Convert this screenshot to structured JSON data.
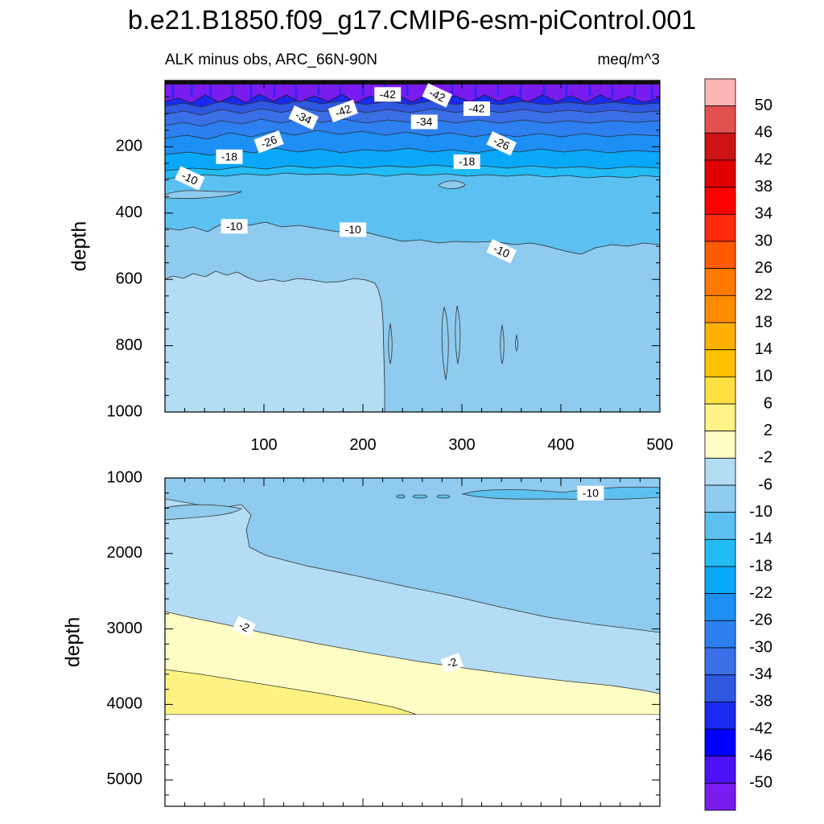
{
  "title": "b.e21.B1850.f09_g17.CMIP6-esm-piControl.001",
  "subtitle_left": "ALK minus obs, ARC_66N-90N",
  "subtitle_right": "meq/m^3",
  "chart_data": [
    {
      "type": "contour",
      "panel": "upper",
      "ylabel": "depth",
      "y_range": [
        0,
        1000
      ],
      "y_ticks": [
        "200",
        "400",
        "600",
        "800",
        "1000"
      ],
      "x_range": [
        0,
        500
      ],
      "x_ticks": [
        "100",
        "200",
        "300",
        "400",
        "500"
      ],
      "bands": [
        {
          "name": "-50 to -42 band",
          "top_depth": 0,
          "bottom_depth": 60,
          "color": "#7a1cf0"
        },
        {
          "name": "-42 to -38 band",
          "top_depth": 60,
          "bottom_depth": 80,
          "color": "#1a2af0"
        },
        {
          "name": "-38 to -34 band",
          "top_depth": 80,
          "bottom_depth": 100,
          "color": "#2f58e0"
        },
        {
          "name": "-34 to -30 band",
          "top_depth": 100,
          "bottom_depth": 130,
          "color": "#3a6fe8"
        },
        {
          "name": "-30 to -26 band",
          "top_depth": 130,
          "bottom_depth": 160,
          "color": "#2c80f0"
        },
        {
          "name": "-26 to -22 band",
          "top_depth": 160,
          "bottom_depth": 195,
          "color": "#1e8ff5"
        },
        {
          "name": "-22 to -18 band",
          "top_depth": 195,
          "bottom_depth": 220,
          "color": "#0aa8f8"
        },
        {
          "name": "-18 to -14 band",
          "top_depth": 220,
          "bottom_depth": 255,
          "color": "#22bcf5"
        },
        {
          "name": "-14 to -10 band",
          "top_depth": 255,
          "bottom_depth": 470,
          "color": "#5cc1f0"
        },
        {
          "name": "-10 to -6 band",
          "top_depth": 470,
          "bottom_depth": 600,
          "color": "#8ecbee"
        },
        {
          "name": "-6 to -2 band",
          "top_depth": 600,
          "bottom_depth": 1000,
          "color": "#b4dcf4"
        }
      ],
      "labels": [
        {
          "text": "-42",
          "x": 225,
          "y": 42
        },
        {
          "text": "-42",
          "x": 275,
          "y": 45
        },
        {
          "text": "-42",
          "x": 180,
          "y": 92
        },
        {
          "text": "-42",
          "x": 315,
          "y": 85
        },
        {
          "text": "-34",
          "x": 140,
          "y": 112
        },
        {
          "text": "-34",
          "x": 262,
          "y": 125
        },
        {
          "text": "-26",
          "x": 105,
          "y": 185
        },
        {
          "text": "-26",
          "x": 340,
          "y": 190
        },
        {
          "text": "-18",
          "x": 65,
          "y": 230
        },
        {
          "text": "-18",
          "x": 305,
          "y": 245
        },
        {
          "text": "-10",
          "x": 25,
          "y": 295
        },
        {
          "text": "-10",
          "x": 70,
          "y": 440
        },
        {
          "text": "-10",
          "x": 190,
          "y": 450
        },
        {
          "text": "-10",
          "x": 340,
          "y": 515
        }
      ]
    },
    {
      "type": "contour",
      "panel": "lower",
      "ylabel": "depth",
      "y_range": [
        1000,
        5350
      ],
      "y_ticks": [
        "1000",
        "2000",
        "3000",
        "4000",
        "5000"
      ],
      "x_range": [
        0,
        500
      ],
      "bands": [
        {
          "name": "-14 to -10 band",
          "color": "#5cc1f0"
        },
        {
          "name": "-10 to -6 band",
          "color": "#8ecbee"
        },
        {
          "name": "-6 to -2 band",
          "color": "#b4dcf4"
        },
        {
          "name": "-2 to 2 band",
          "color": "#fefec4"
        },
        {
          "name": "2 to 6 band",
          "color": "#fef382"
        }
      ],
      "bottom_depth": 4120,
      "labels": [
        {
          "text": "-10",
          "x": 430,
          "y": 1200
        },
        {
          "text": "-2",
          "x": 80,
          "y": 2970
        },
        {
          "text": "-2",
          "x": 290,
          "y": 3450
        }
      ]
    }
  ],
  "colorbar": {
    "labels": [
      "50",
      "46",
      "42",
      "38",
      "34",
      "30",
      "26",
      "22",
      "18",
      "14",
      "10",
      "6",
      "2",
      "-2",
      "-6",
      "-10",
      "-14",
      "-18",
      "-22",
      "-26",
      "-30",
      "-34",
      "-38",
      "-42",
      "-46",
      "-50"
    ],
    "colors": [
      "#feb4b4",
      "#e25050",
      "#cd1313",
      "#e00000",
      "#ff0000",
      "#ff2a0a",
      "#ff5a00",
      "#ff7800",
      "#ff8c00",
      "#ffb000",
      "#ffc000",
      "#ffe040",
      "#fff385",
      "#fefec4",
      "#b4dcf4",
      "#8ecbee",
      "#5cc1f0",
      "#22bcf5",
      "#0aa8f8",
      "#1e8ff5",
      "#2c80f0",
      "#3a6fe8",
      "#2f58e0",
      "#1a2af0",
      "#0000ff",
      "#4b12f5",
      "#7a1cf0"
    ]
  }
}
